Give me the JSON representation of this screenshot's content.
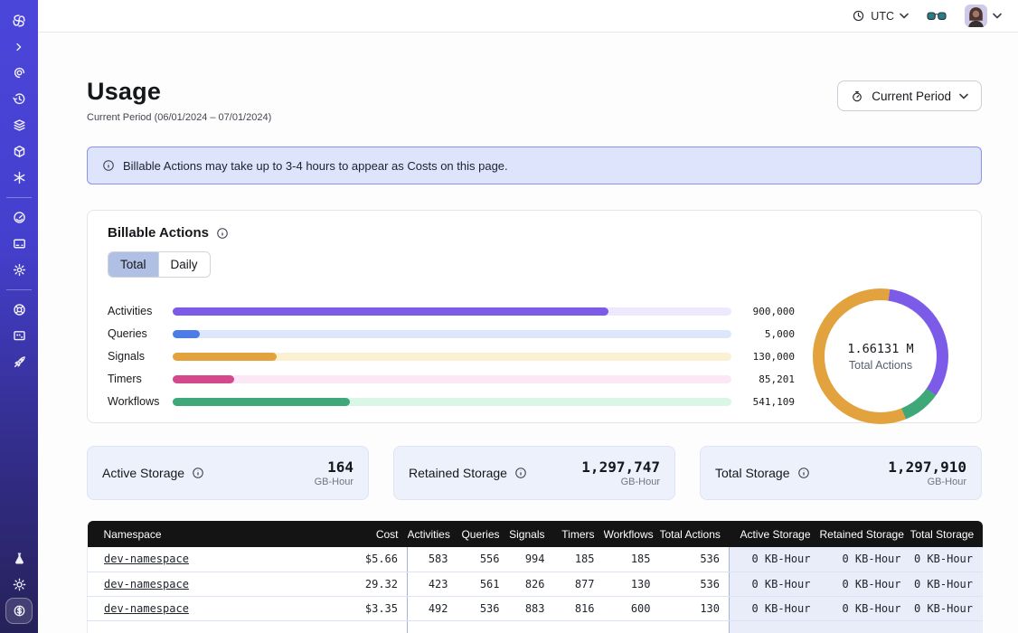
{
  "topbar": {
    "timezone": "UTC"
  },
  "page": {
    "title": "Usage",
    "subtitle": "Current Period (06/01/2024 – 07/01/2024)",
    "period_button_label": "Current Period"
  },
  "banner": {
    "text": "Billable Actions may take up to 3-4 hours to appear as Costs on this page."
  },
  "billable_actions": {
    "title": "Billable Actions",
    "tabs": [
      "Total",
      "Daily"
    ],
    "active_tab": "Total"
  },
  "chart_data": [
    {
      "type": "bar",
      "title": "Billable Actions (Total)",
      "orientation": "horizontal",
      "categories": [
        "Activities",
        "Queries",
        "Signals",
        "Timers",
        "Workflows"
      ],
      "values": [
        900000,
        5000,
        130000,
        85201,
        541109
      ],
      "value_labels": [
        "900,000",
        "5,000",
        "130,000",
        "85,201",
        "541,109"
      ],
      "bar_colors": [
        "#7C5BE8",
        "#4C7CE5",
        "#E2A23E",
        "#D4498C",
        "#3EA878"
      ],
      "track_colors": [
        "#EDE8FC",
        "#DCE7FB",
        "#FAF0D2",
        "#FBE7F6",
        "#D9F6E7"
      ],
      "fill_fractions": [
        0.78,
        0.048,
        0.186,
        0.11,
        0.317
      ],
      "legend": "off",
      "grid": "off"
    },
    {
      "type": "donut",
      "center_value": "1.66131 M",
      "center_label": "Total Actions",
      "segments": [
        {
          "color": "#E2A23E",
          "from": 0,
          "to": 8
        },
        {
          "color": "#7C5BE8",
          "from": 8,
          "to": 125
        },
        {
          "color": "#3EA878",
          "from": 125,
          "to": 158
        },
        {
          "color": "#E2A23E",
          "from": 158,
          "to": 360
        }
      ]
    }
  ],
  "storage_cards": [
    {
      "label": "Active Storage",
      "value": "164",
      "unit": "GB-Hour"
    },
    {
      "label": "Retained Storage",
      "value": "1,297,747",
      "unit": "GB-Hour"
    },
    {
      "label": "Total Storage",
      "value": "1,297,910",
      "unit": "GB-Hour"
    }
  ],
  "table": {
    "headers": [
      "Namespace",
      "Cost",
      "Activities",
      "Queries",
      "Signals",
      "Timers",
      "Workflows",
      "Total Actions",
      "Active Storage",
      "Retained Storage",
      "Total Storage"
    ],
    "rows": [
      [
        "dev-namespace",
        "$5.66",
        "583",
        "556",
        "994",
        "185",
        "185",
        "536",
        "0 KB-Hour",
        "0 KB-Hour",
        "0 KB-Hour"
      ],
      [
        "dev-namespace",
        "29.32",
        "423",
        "561",
        "826",
        "877",
        "130",
        "536",
        "0 KB-Hour",
        "0 KB-Hour",
        "0 KB-Hour"
      ],
      [
        "dev-namespace",
        "$3.35",
        "492",
        "536",
        "883",
        "816",
        "600",
        "130",
        "0 KB-Hour",
        "0 KB-Hour",
        "0 KB-Hour"
      ]
    ]
  }
}
